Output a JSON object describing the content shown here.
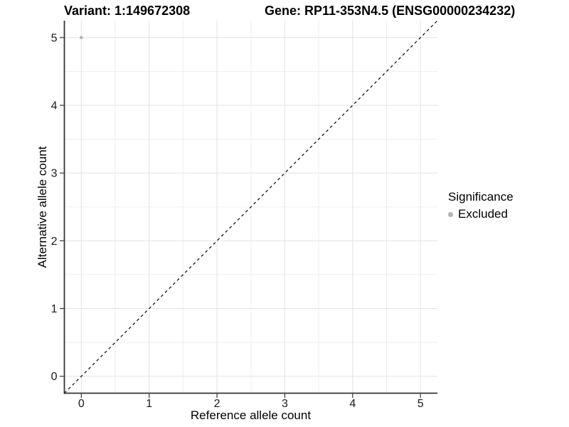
{
  "chart_data": {
    "type": "scatter",
    "title_left": "Variant: 1:149672308",
    "title_right": "Gene: RP11-353N4.5 (ENSG00000234232)",
    "xlabel": "Reference allele count",
    "ylabel": "Alternative allele count",
    "xlim": [
      -0.25,
      5.25
    ],
    "ylim": [
      -0.25,
      5.25
    ],
    "xticks": [
      0,
      1,
      2,
      3,
      4,
      5
    ],
    "yticks": [
      0,
      1,
      2,
      3,
      4,
      5
    ],
    "minor_step": 0.5,
    "grid": true,
    "identity_line": {
      "style": "dashed",
      "color": "#000000",
      "from": [
        -0.25,
        -0.25
      ],
      "to": [
        5.25,
        5.25
      ]
    },
    "series": [
      {
        "name": "Excluded",
        "color": "#b3b3b3",
        "points": [
          {
            "x": 0,
            "y": 5
          }
        ]
      }
    ],
    "legend": {
      "title": "Significance",
      "position": "right",
      "entries": [
        {
          "label": "Excluded",
          "color": "#b3b3b3"
        }
      ]
    },
    "colors": {
      "grid_major": "#e2e2e2",
      "grid_minor": "#eeeeee",
      "axis_line": "#333333",
      "tick_mark": "#333333",
      "tick_label": "#1a1a1a",
      "background": "#ffffff"
    }
  }
}
